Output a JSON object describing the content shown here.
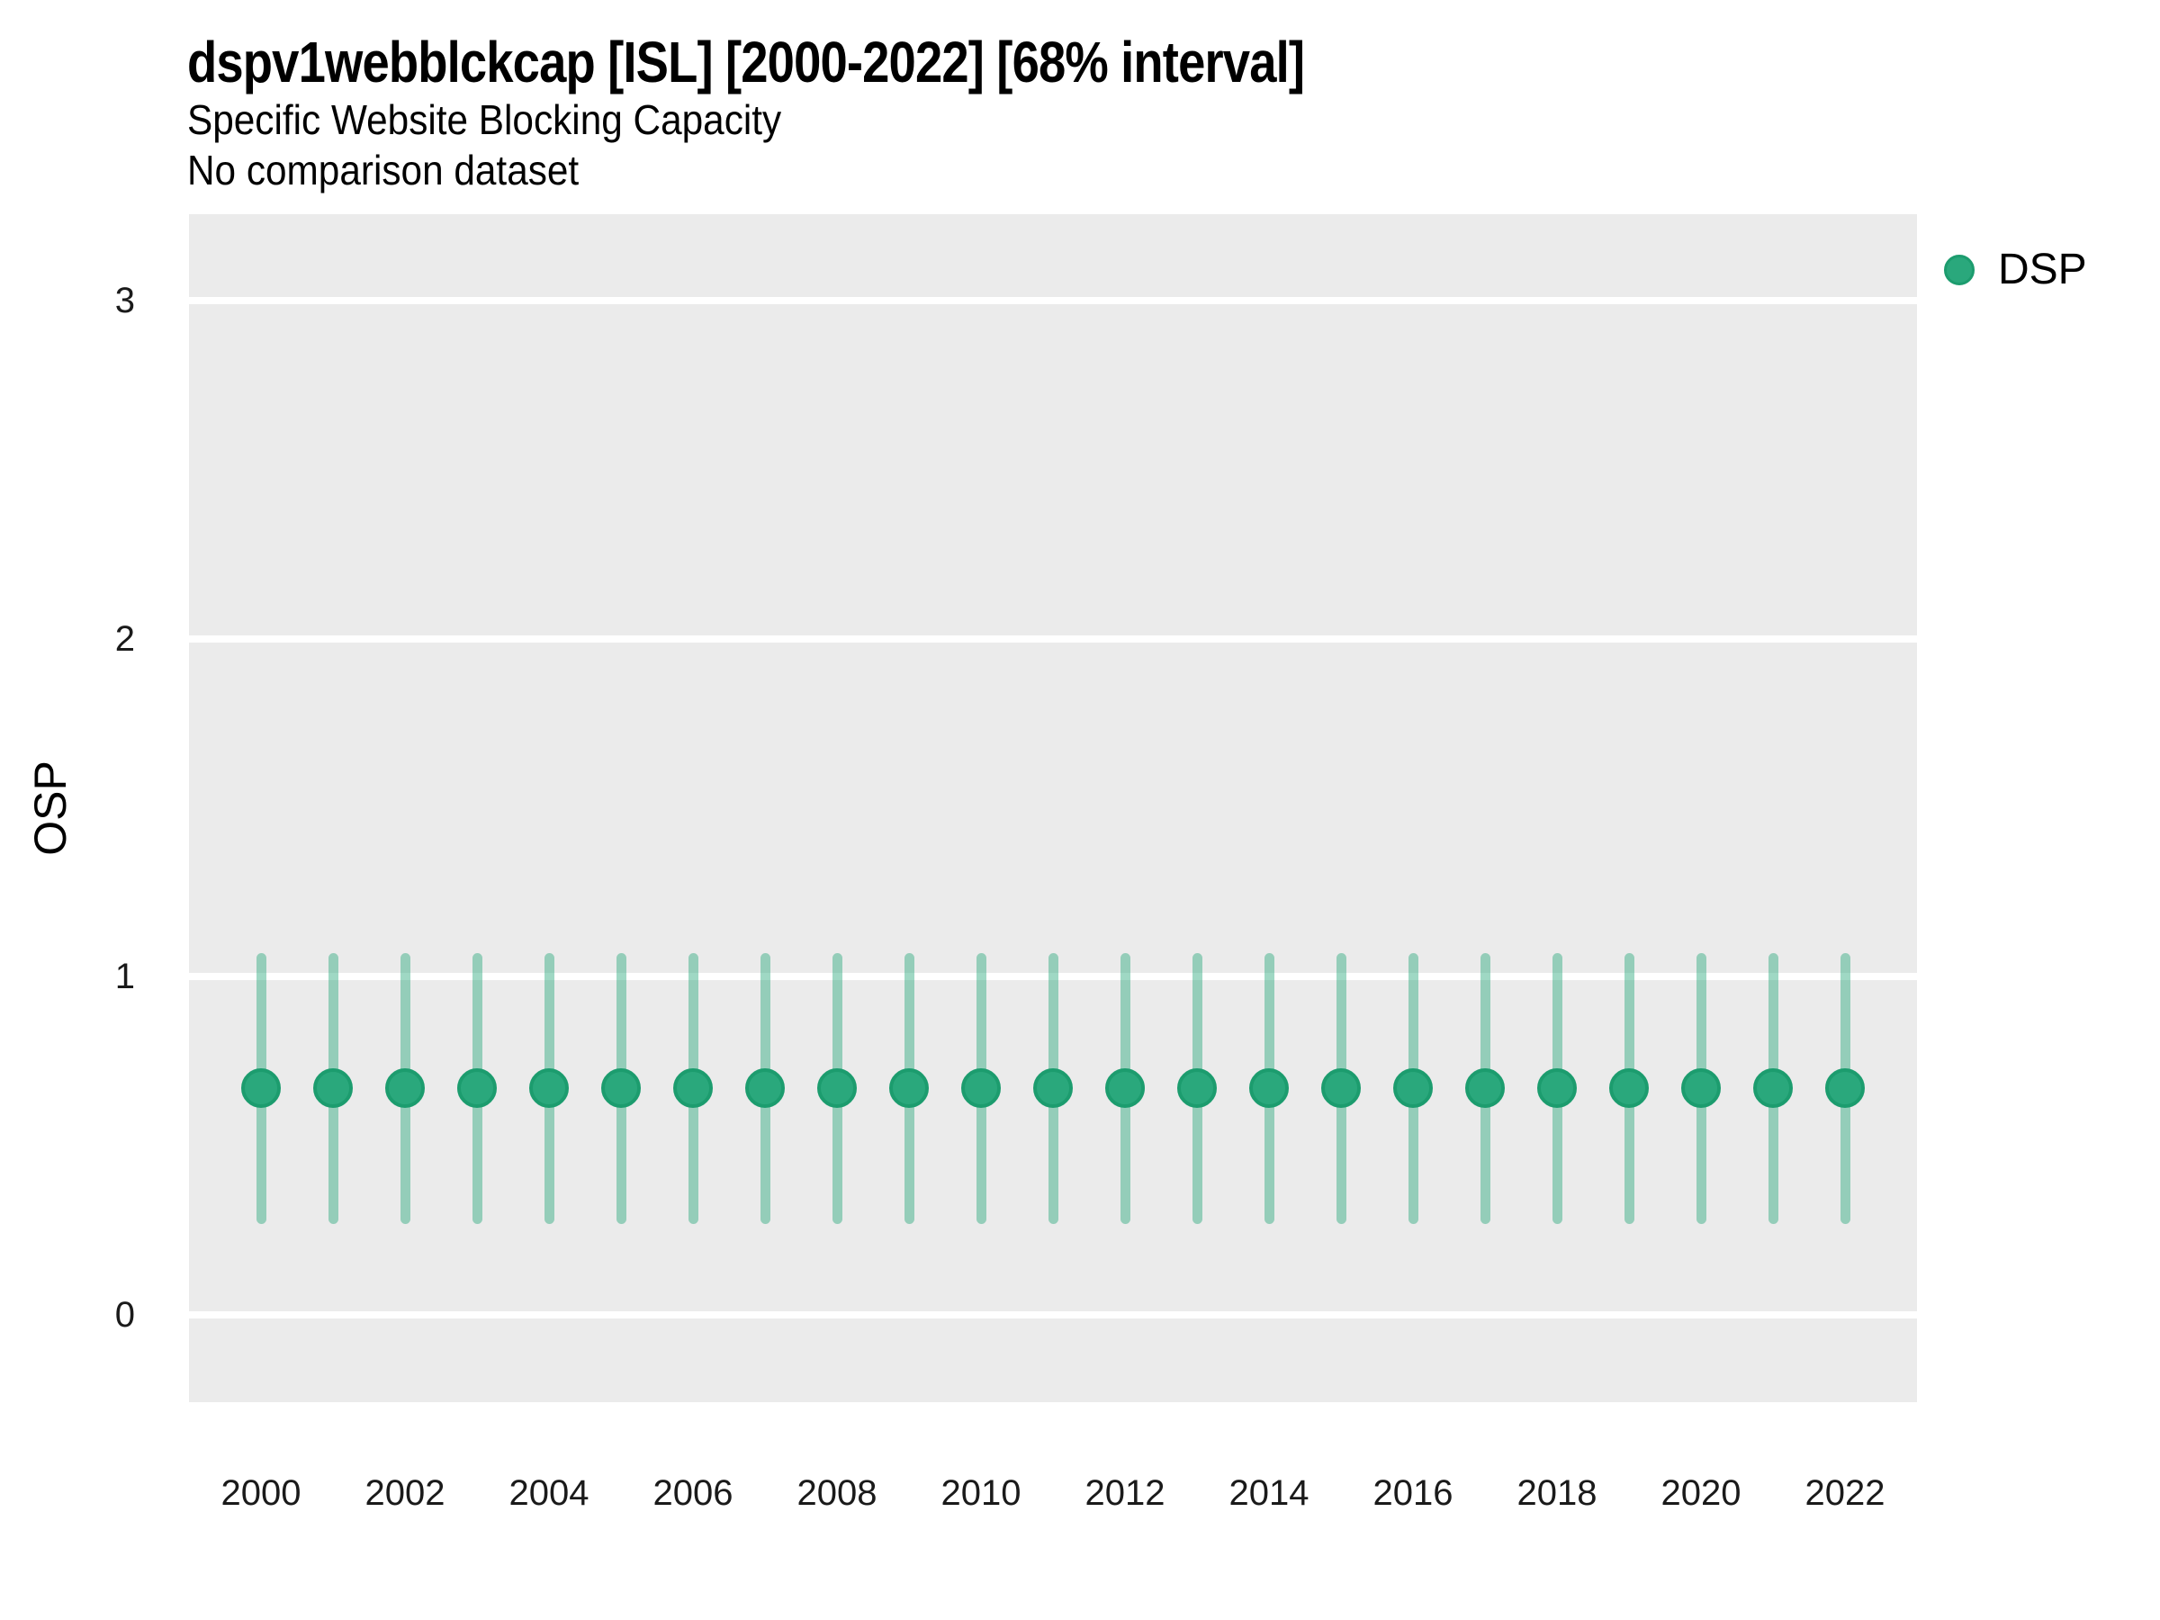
{
  "header": {
    "title": "dspv1webblckcap [ISL] [2000-2022] [68% interval]",
    "subtitle": "Specific Website Blocking Capacity",
    "note": "No comparison dataset"
  },
  "legend": {
    "position": "right",
    "items": [
      {
        "label": "DSP",
        "marker": "circle-icon",
        "color": "#2aa87c"
      }
    ]
  },
  "colors": {
    "point_fill": "#2aa87c",
    "point_border": "#1c9c6e",
    "interval_bar": "rgba(42, 168, 124, 0.45)",
    "panel_background": "#ebebeb",
    "gridline": "#ffffff",
    "tick_text": "#1a1a1a",
    "title_text": "#000000"
  },
  "chart_data": {
    "type": "scatter",
    "title": "dspv1webblckcap [ISL] [2000-2022] [68% interval]",
    "subtitle": "Specific Website Blocking Capacity",
    "note": "No comparison dataset",
    "xlabel": "",
    "ylabel": "OSP",
    "interval": "68%",
    "grid": "horizontal-major-only",
    "legend_position": "right",
    "ylim": [
      -0.26,
      3.26
    ],
    "yticks": [
      0,
      1,
      2,
      3
    ],
    "xticks": [
      2000,
      2002,
      2004,
      2006,
      2008,
      2010,
      2012,
      2014,
      2016,
      2018,
      2020,
      2022
    ],
    "x": [
      2000,
      2001,
      2002,
      2003,
      2004,
      2005,
      2006,
      2007,
      2008,
      2009,
      2010,
      2011,
      2012,
      2013,
      2014,
      2015,
      2016,
      2017,
      2018,
      2019,
      2020,
      2021,
      2022
    ],
    "series": [
      {
        "name": "DSP",
        "color": "#2aa87c",
        "marker_border": "#1c9c6e",
        "interval_color": "rgba(42, 168, 124, 0.45)",
        "values": [
          0.67,
          0.67,
          0.67,
          0.67,
          0.67,
          0.67,
          0.67,
          0.67,
          0.67,
          0.67,
          0.67,
          0.67,
          0.67,
          0.67,
          0.67,
          0.67,
          0.67,
          0.67,
          0.67,
          0.67,
          0.67,
          0.67,
          0.67
        ],
        "interval_low": [
          0.27,
          0.27,
          0.27,
          0.27,
          0.27,
          0.27,
          0.27,
          0.27,
          0.27,
          0.27,
          0.27,
          0.27,
          0.27,
          0.27,
          0.27,
          0.27,
          0.27,
          0.27,
          0.27,
          0.27,
          0.27,
          0.27,
          0.27
        ],
        "interval_high": [
          1.07,
          1.07,
          1.07,
          1.07,
          1.07,
          1.07,
          1.07,
          1.07,
          1.07,
          1.07,
          1.07,
          1.07,
          1.07,
          1.07,
          1.07,
          1.07,
          1.07,
          1.07,
          1.07,
          1.07,
          1.07,
          1.07,
          1.07
        ]
      }
    ]
  }
}
